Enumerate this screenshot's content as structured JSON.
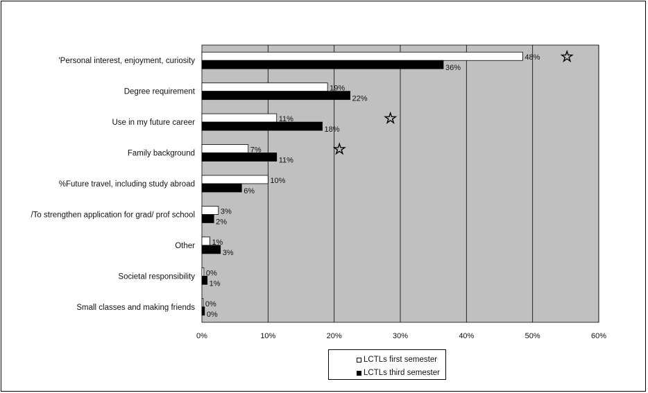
{
  "colors": {
    "plot_background": "#c0c0c0",
    "first_semester": "#ffffff",
    "third_semester": "#000000",
    "gridline": "#000000"
  },
  "chart_data": {
    "type": "bar",
    "orientation": "horizontal",
    "title": "",
    "xlabel": "",
    "ylabel": "",
    "xlim": [
      0,
      60
    ],
    "x_ticks": [
      "0%",
      "10%",
      "20%",
      "30%",
      "40%",
      "50%",
      "60%"
    ],
    "grid": true,
    "legend_position": "bottom",
    "categories": [
      "'Personal interest, enjoyment, curiosity",
      "Degree requirement",
      "Use in my future career",
      "Family background",
      "%Future travel, including study abroad",
      "/To strengthen application for grad/ prof school",
      "Other",
      "Societal responsibility",
      "Small classes and making friends"
    ],
    "series": [
      {
        "name": "LCTLs first semester",
        "values": [
          48.5,
          19,
          11.3,
          7,
          10,
          2.5,
          1.2,
          0.3,
          0.2
        ],
        "labels": [
          "48%",
          "19%",
          "11%",
          "7%",
          "10%",
          "3%",
          "1%",
          "0%",
          "0%"
        ]
      },
      {
        "name": "LCTLs third semester",
        "values": [
          36.5,
          22.4,
          18.2,
          11.3,
          6,
          1.8,
          2.8,
          0.8,
          0.4
        ],
        "labels": [
          "36%",
          "22%",
          "18%",
          "11%",
          "6%",
          "2%",
          "3%",
          "1%",
          "0%"
        ]
      }
    ],
    "annotations": [
      {
        "symbol": "☆",
        "x": 55.2,
        "category_index": 0
      },
      {
        "symbol": "☆",
        "x": 28.5,
        "category_index": 2
      },
      {
        "symbol": "☆",
        "x": 20.8,
        "category_index": 3
      }
    ]
  }
}
